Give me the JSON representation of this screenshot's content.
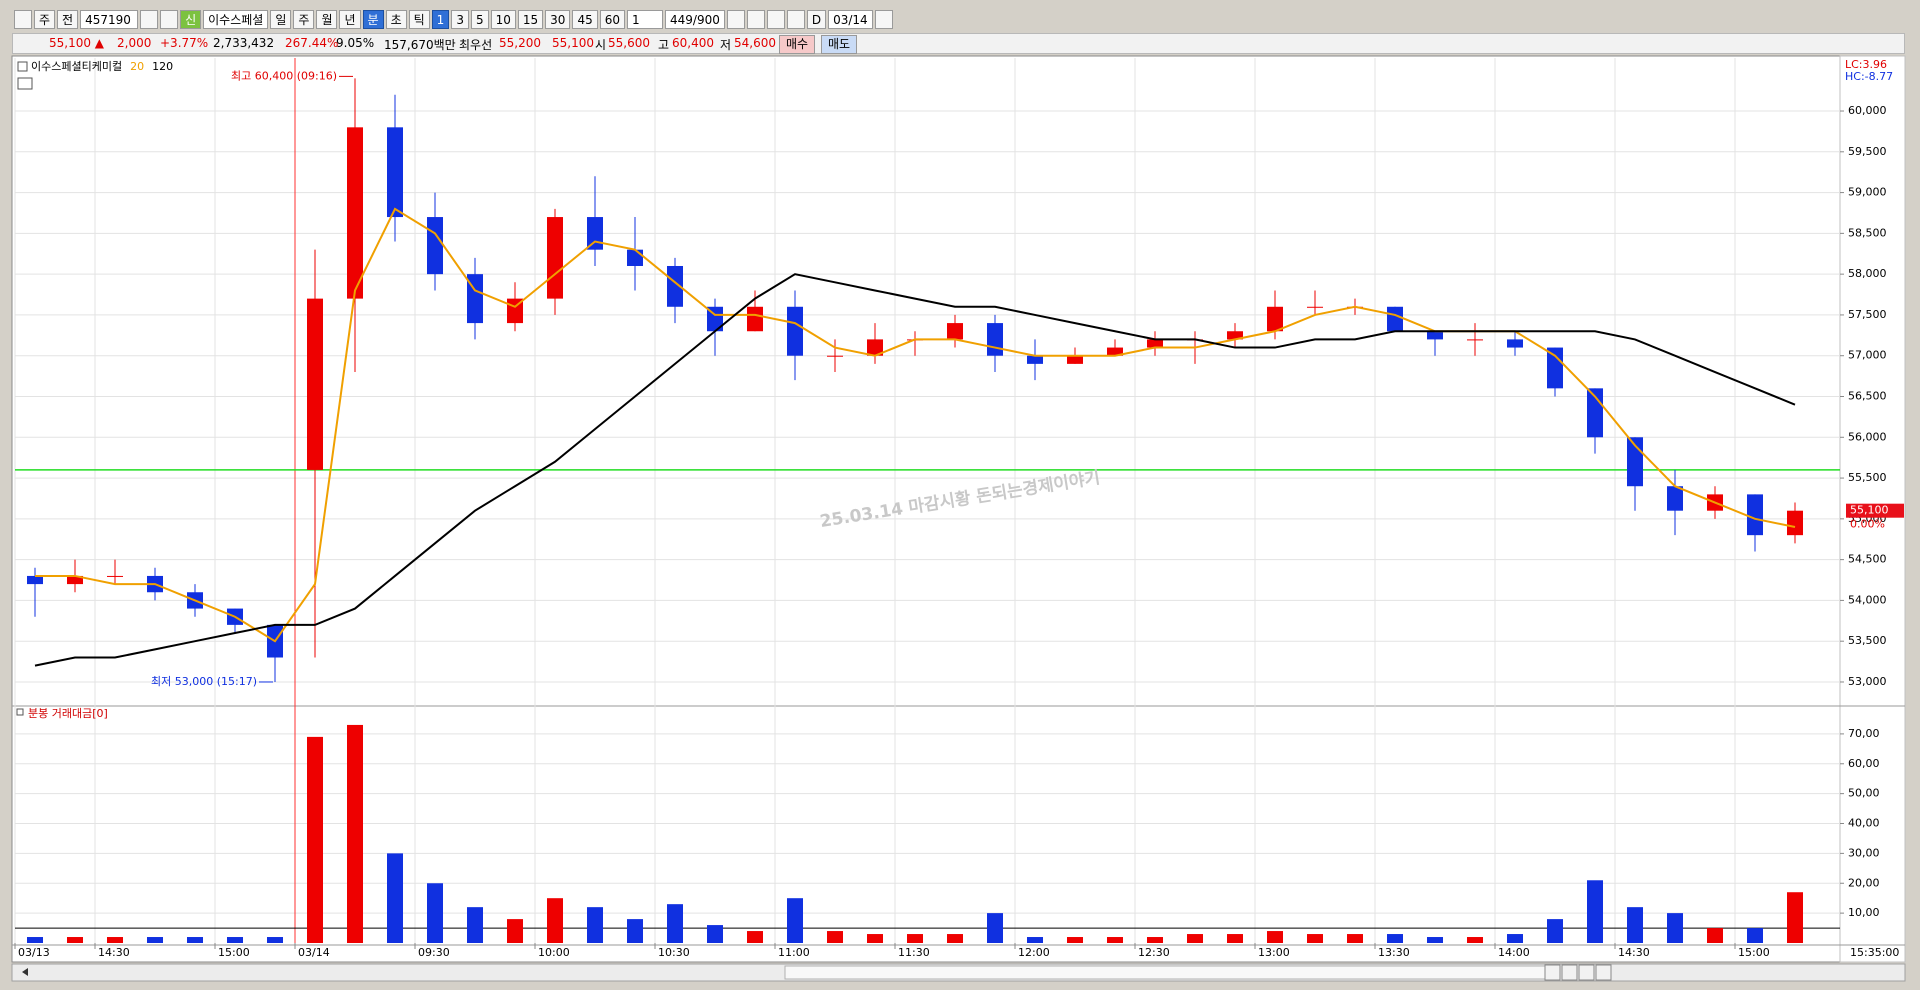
{
  "toolbar": {
    "period": "주",
    "market": "전",
    "code": "457190",
    "new": "신",
    "name": "이수스페셜",
    "units": [
      "일",
      "주",
      "월",
      "년",
      "분",
      "초",
      "틱"
    ],
    "intervals": [
      "1",
      "3",
      "5",
      "10",
      "15",
      "30",
      "45",
      "60"
    ],
    "count": "1",
    "bars": "449/900",
    "d": "D",
    "date": "03/14"
  },
  "quote": [
    {
      "text": "55,100 ▲",
      "color": "#e00000"
    },
    {
      "text": "2,000",
      "color": "#e00000"
    },
    {
      "text": "+3.77%",
      "color": "#e00000"
    },
    {
      "text": "2,733,432",
      "color": "#000000"
    },
    {
      "text": "267.44%",
      "color": "#e00000"
    },
    {
      "text": "9.05%",
      "color": "#000000"
    },
    {
      "text": "157,670백만",
      "color": "#000000"
    },
    {
      "text": "최우선",
      "color": "#000000"
    },
    {
      "text": "55,200",
      "color": "#e00000"
    },
    {
      "text": "55,100",
      "color": "#e00000"
    },
    {
      "text": "시",
      "color": "#000000"
    },
    {
      "text": "55,600",
      "color": "#e00000"
    },
    {
      "text": "고",
      "color": "#000000"
    },
    {
      "text": "60,400",
      "color": "#e00000"
    },
    {
      "text": "저",
      "color": "#000000"
    },
    {
      "text": "54,600",
      "color": "#e00000"
    }
  ],
  "buttons": [
    {
      "text": "매수",
      "color": "#f6c9c9"
    },
    {
      "text": "매도",
      "color": "#c9dbf6"
    }
  ],
  "chart_data": [
    {
      "type": "candlestick",
      "categories": [
        "03/13",
        null,
        "14:30",
        null,
        null,
        "15:00",
        null,
        "03/14",
        null,
        null,
        "09:30",
        null,
        null,
        "10:00",
        null,
        null,
        "10:30",
        null,
        null,
        "11:00",
        null,
        null,
        "11:30",
        null,
        null,
        "12:00",
        null,
        null,
        "12:30",
        null,
        null,
        "13:00",
        null,
        null,
        "13:30",
        null,
        null,
        "14:00",
        null,
        null,
        "14:30",
        null,
        null,
        "15:00",
        null
      ],
      "x_end_label": "15:35:00",
      "series": [
        {
          "name": "이수스페셜티케미컬",
          "up_color": "#ee0000",
          "down_color": "#1030e0",
          "open": [
            54300,
            54200,
            54300,
            54300,
            54100,
            53900,
            53700,
            55600,
            57700,
            59800,
            58700,
            58000,
            57400,
            57700,
            58700,
            58300,
            58100,
            57600,
            57300,
            57600,
            57000,
            57000,
            57200,
            57200,
            57400,
            57000,
            56900,
            57000,
            57100,
            57200,
            57200,
            57300,
            57600,
            57600,
            57600,
            57300,
            57200,
            57200,
            57100,
            56600,
            56000,
            55400,
            55100,
            55300,
            54800
          ],
          "high": [
            54400,
            54500,
            54500,
            54400,
            54200,
            53900,
            53700,
            58300,
            60400,
            60200,
            59000,
            58200,
            57900,
            58800,
            59200,
            58700,
            58200,
            57700,
            57800,
            57800,
            57200,
            57400,
            57300,
            57500,
            57500,
            57200,
            57100,
            57200,
            57300,
            57300,
            57400,
            57800,
            57800,
            57700,
            57600,
            57300,
            57400,
            57300,
            57100,
            56600,
            56000,
            55600,
            55400,
            55300,
            55200
          ],
          "low": [
            53800,
            54100,
            54200,
            54000,
            53800,
            53600,
            53000,
            53300,
            56800,
            58400,
            57800,
            57200,
            57300,
            57500,
            58100,
            57800,
            57400,
            57000,
            57300,
            56700,
            56800,
            56900,
            57000,
            57100,
            56800,
            56700,
            56900,
            57000,
            57000,
            56900,
            57100,
            57200,
            57500,
            57500,
            57300,
            57000,
            57000,
            57000,
            56500,
            55800,
            55100,
            54800,
            55000,
            54600,
            54700
          ],
          "close": [
            54200,
            54300,
            54300,
            54100,
            53900,
            53700,
            53300,
            57700,
            59800,
            58700,
            58000,
            57400,
            57700,
            58700,
            58300,
            58100,
            57600,
            57300,
            57600,
            57000,
            57000,
            57200,
            57200,
            57400,
            57000,
            56900,
            57000,
            57100,
            57200,
            57200,
            57300,
            57600,
            57600,
            57600,
            57300,
            57200,
            57200,
            57100,
            56600,
            56000,
            55400,
            55100,
            55300,
            54800,
            55100
          ]
        },
        {
          "name": "20",
          "color": "#f0a000",
          "values": [
            54300,
            54300,
            54200,
            54200,
            54000,
            53800,
            53500,
            54200,
            57800,
            58800,
            58500,
            57800,
            57600,
            58000,
            58400,
            58300,
            57900,
            57500,
            57500,
            57400,
            57100,
            57000,
            57200,
            57200,
            57100,
            57000,
            57000,
            57000,
            57100,
            57100,
            57200,
            57300,
            57500,
            57600,
            57500,
            57300,
            57300,
            57300,
            57000,
            56500,
            55900,
            55400,
            55200,
            55000,
            54900
          ]
        },
        {
          "name": "120",
          "color": "#000000",
          "values": [
            53200,
            53300,
            53300,
            53400,
            53500,
            53600,
            53700,
            53700,
            53900,
            54300,
            54700,
            55100,
            55400,
            55700,
            56100,
            56500,
            56900,
            57300,
            57700,
            58000,
            57900,
            57800,
            57700,
            57600,
            57600,
            57500,
            57400,
            57300,
            57200,
            57200,
            57100,
            57100,
            57200,
            57200,
            57300,
            57300,
            57300,
            57300,
            57300,
            57300,
            57200,
            57000,
            56800,
            56600,
            56400
          ]
        }
      ],
      "ylim": [
        52730,
        60650
      ],
      "yticks": [
        {
          "value": 53000,
          "label": "53,000"
        },
        {
          "value": 53500,
          "label": "53,500"
        },
        {
          "value": 54000,
          "label": "54,000"
        },
        {
          "value": 54500,
          "label": "54,500"
        },
        {
          "value": 55000,
          "label": "55,000"
        },
        {
          "value": 55500,
          "label": "55,500"
        },
        {
          "value": 56000,
          "label": "56,000"
        },
        {
          "value": 56500,
          "label": "56,500"
        },
        {
          "value": 57000,
          "label": "57,000"
        },
        {
          "value": 57500,
          "label": "57,500"
        },
        {
          "value": 58000,
          "label": "58,000"
        },
        {
          "value": 58500,
          "label": "58,500"
        },
        {
          "value": 59000,
          "label": "59,000"
        },
        {
          "value": 59500,
          "label": "59,500"
        },
        {
          "value": 60000,
          "label": "60,000"
        }
      ],
      "hline": {
        "value": 55600,
        "color": "#22dd22"
      },
      "annotations": {
        "high": "최고 60,400 (09:16)",
        "low": "최저 53,000 (15:17)",
        "watermark": "25.03.14 마감시황 돈되는경제이야기",
        "lc": "LC:3.96",
        "hc": "HC:-8.77",
        "last_price": "55,100",
        "last_pct": "0.00%"
      },
      "grid": true
    },
    {
      "type": "bar",
      "title": "분봉 거래대금[0]",
      "values": [
        2,
        2,
        2,
        2,
        2,
        2,
        2,
        69,
        73,
        30,
        20,
        12,
        8,
        15,
        12,
        8,
        13,
        6,
        4,
        15,
        4,
        3,
        3,
        3,
        10,
        2,
        2,
        2,
        2,
        3,
        3,
        4,
        3,
        3,
        3,
        2,
        2,
        3,
        8,
        21,
        12,
        10,
        5,
        5,
        17
      ],
      "ylim": [
        0,
        78
      ],
      "yticks": [
        {
          "value": 10,
          "label": "10,00"
        },
        {
          "value": 20,
          "label": "20,00"
        },
        {
          "value": 30,
          "label": "30,00"
        },
        {
          "value": 40,
          "label": "40,00"
        },
        {
          "value": 50,
          "label": "50,00"
        },
        {
          "value": 60,
          "label": "60,00"
        },
        {
          "value": 70,
          "label": "70,00"
        }
      ],
      "hline": {
        "value": 5,
        "color": "#000000"
      },
      "grid": true
    }
  ]
}
